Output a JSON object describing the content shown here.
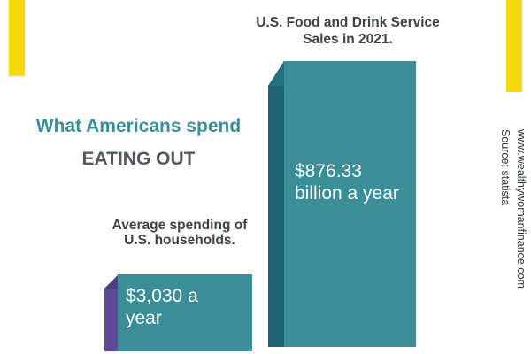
{
  "title": {
    "line1": "What Americans spend",
    "line2": "EATING OUT"
  },
  "chart_data": {
    "type": "bar",
    "title": "What Americans spend EATING OUT",
    "categories": [
      "Average spending of U.S. households.",
      "U.S. Food and Drink Service Sales in 2021."
    ],
    "values": [
      3030,
      876330000000
    ],
    "value_labels": [
      "$3,030 a year",
      "$876.33 billion a year"
    ],
    "units": "USD per year",
    "bar_colors": {
      "front": "#3a8e97",
      "dark_side": "#1c6578",
      "purple_side": "#5b4b97"
    }
  },
  "source": {
    "website": "www.wealthywomanfinance.com",
    "credit": "Source: statista"
  },
  "colors": {
    "accent_yellow": "#f5d90a",
    "title_teal": "#3a8e97",
    "title_gray": "#505a5e"
  }
}
